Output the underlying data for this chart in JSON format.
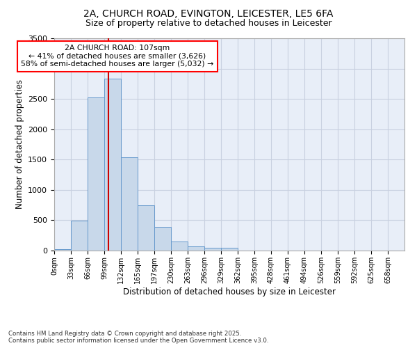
{
  "title_line1": "2A, CHURCH ROAD, EVINGTON, LEICESTER, LE5 6FA",
  "title_line2": "Size of property relative to detached houses in Leicester",
  "xlabel": "Distribution of detached houses by size in Leicester",
  "ylabel": "Number of detached properties",
  "bin_labels": [
    "0sqm",
    "33sqm",
    "66sqm",
    "99sqm",
    "132sqm",
    "165sqm",
    "197sqm",
    "230sqm",
    "263sqm",
    "296sqm",
    "329sqm",
    "362sqm",
    "395sqm",
    "428sqm",
    "461sqm",
    "494sqm",
    "526sqm",
    "559sqm",
    "592sqm",
    "625sqm",
    "658sqm"
  ],
  "bar_values": [
    20,
    490,
    2520,
    2840,
    1540,
    750,
    390,
    145,
    65,
    50,
    50,
    0,
    0,
    0,
    0,
    0,
    0,
    0,
    0,
    0,
    0
  ],
  "bar_color": "#c8d8ea",
  "bar_edge_color": "#6699cc",
  "annotation_box_text": "2A CHURCH ROAD: 107sqm\n← 41% of detached houses are smaller (3,626)\n58% of semi-detached houses are larger (5,032) →",
  "property_line_x": 107,
  "property_line_color": "#cc0000",
  "ylim": [
    0,
    3500
  ],
  "yticks": [
    0,
    500,
    1000,
    1500,
    2000,
    2500,
    3000,
    3500
  ],
  "grid_color": "#c8d0e0",
  "background_color": "#e8eef8",
  "footer_text": "Contains HM Land Registry data © Crown copyright and database right 2025.\nContains public sector information licensed under the Open Government Licence v3.0.",
  "bin_width": 33,
  "n_bins": 21
}
